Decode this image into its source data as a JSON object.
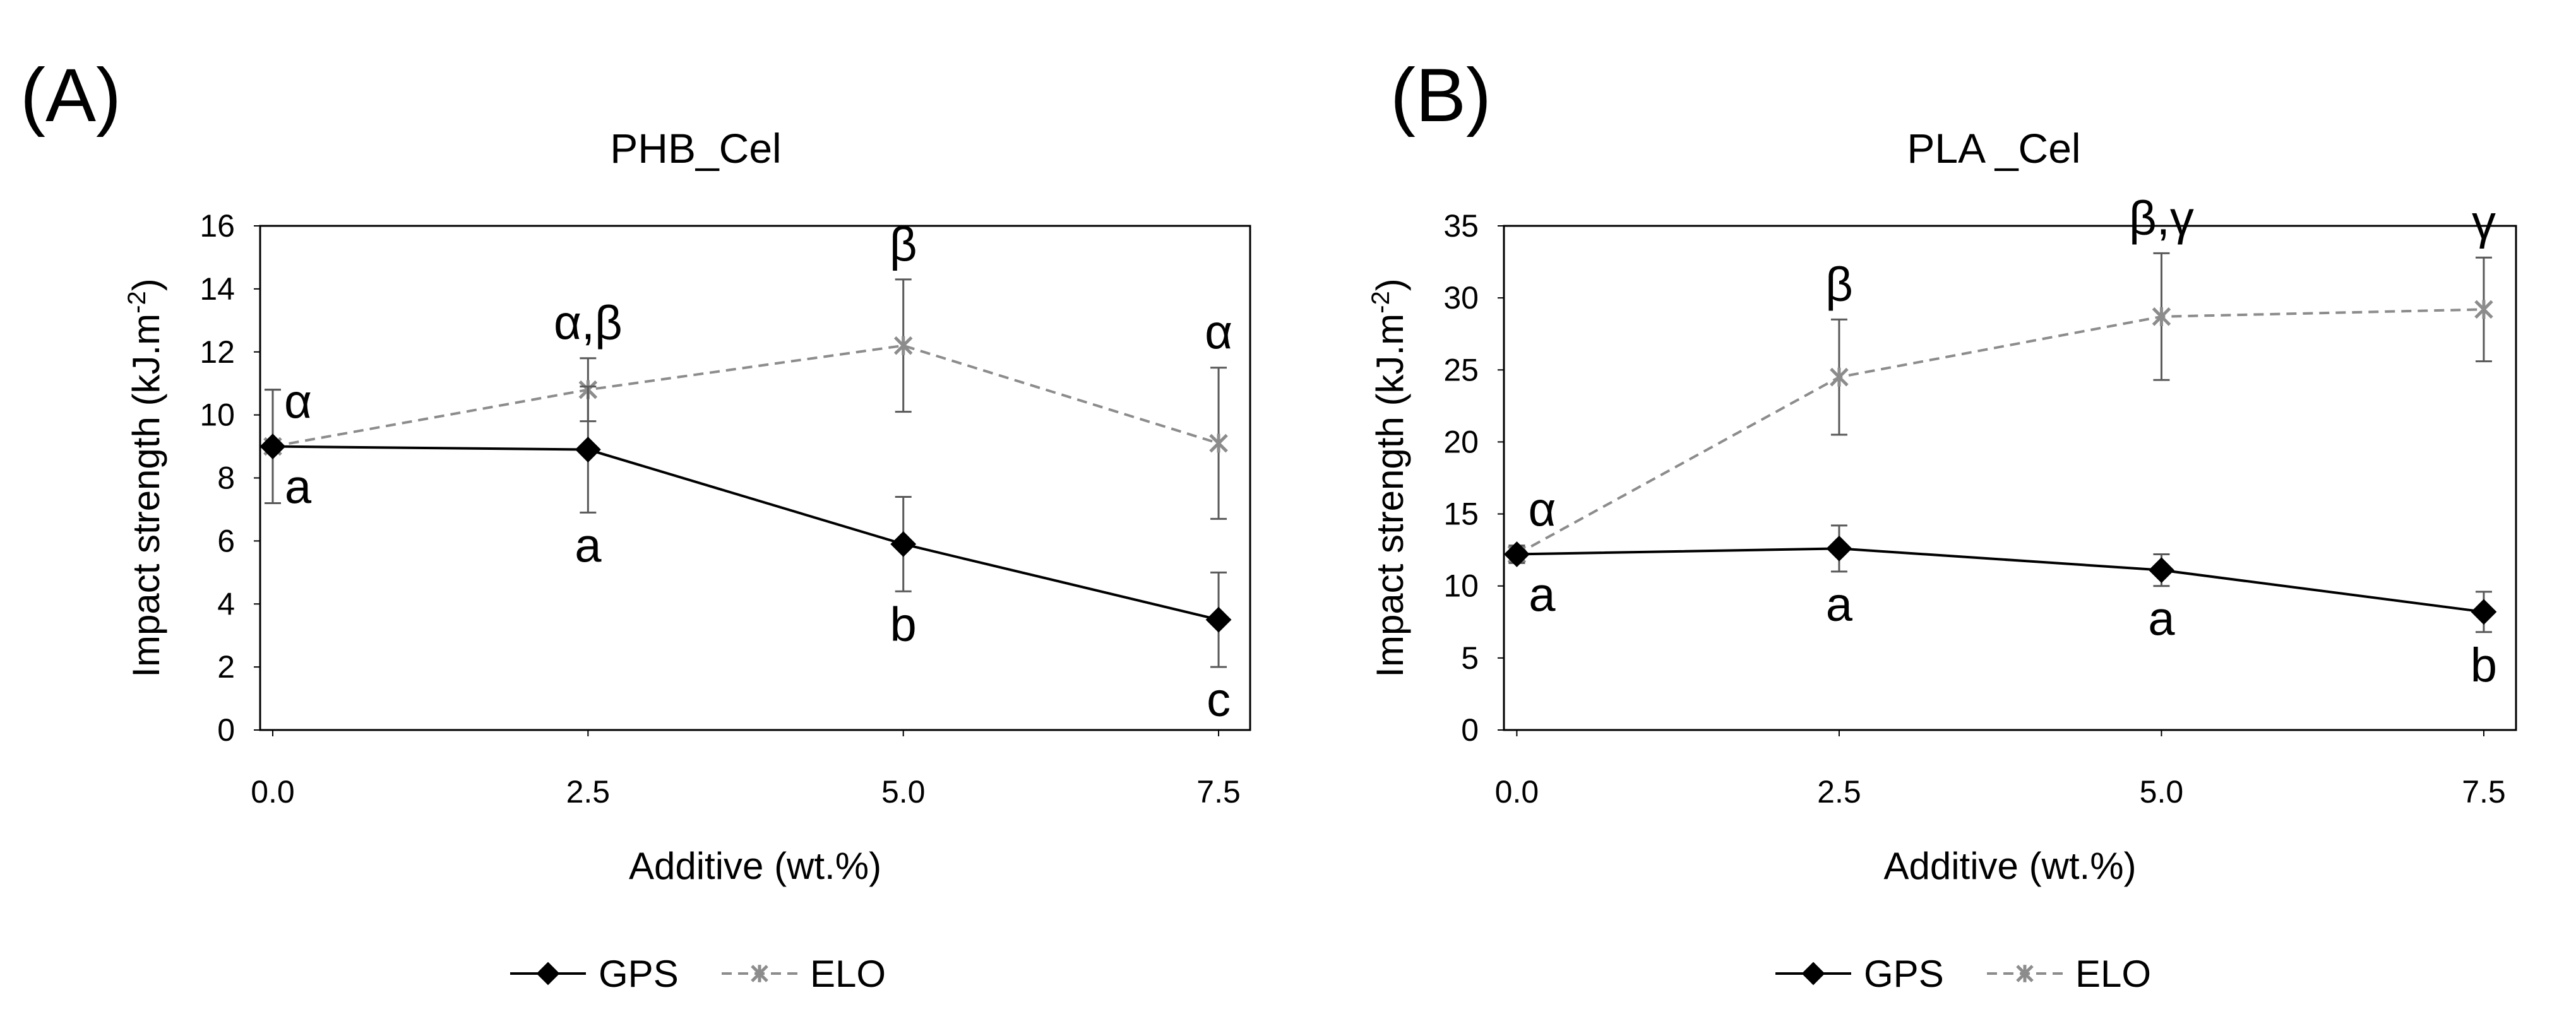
{
  "chart_data": [
    {
      "panel_label": "(A)",
      "type": "line",
      "title": "PHB_Cel",
      "xlabel": "Additive (wt.%)",
      "ylabel_main": "Impact strength (kJ.m",
      "ylabel_sup": "-2",
      "ylabel_end": ")",
      "x": [
        0,
        2.5,
        5,
        7.5
      ],
      "x_tick_labels": [
        "0.0",
        "2.5",
        "5.0",
        "7.5"
      ],
      "ylim": [
        0,
        16
      ],
      "y_ticks": [
        0,
        2,
        4,
        6,
        8,
        10,
        12,
        14,
        16
      ],
      "series": [
        {
          "name": "GPS",
          "values": [
            9.0,
            8.9,
            5.9,
            3.5
          ],
          "errors": [
            1.8,
            2.0,
            1.5,
            1.5
          ],
          "annotations": [
            "a",
            "a",
            "b",
            "c"
          ],
          "annotation_position": "below",
          "color": "#000000",
          "marker": "diamond",
          "line_style": "solid"
        },
        {
          "name": "ELO",
          "values": [
            9.0,
            10.8,
            12.2,
            9.1
          ],
          "errors": [
            1.8,
            1.0,
            2.1,
            2.4
          ],
          "annotations": [
            "α",
            "α,β",
            "β",
            "α"
          ],
          "annotation_position": "above",
          "color": "#8c8c8c",
          "marker": "star",
          "line_style": "dashed"
        }
      ]
    },
    {
      "panel_label": "(B)",
      "type": "line",
      "title": "PLA _Cel",
      "xlabel": "Additive (wt.%)",
      "ylabel_main": "Impact strength (kJ.m",
      "ylabel_sup": "-2",
      "ylabel_end": ")",
      "x": [
        0,
        2.5,
        5,
        7.5
      ],
      "x_tick_labels": [
        "0.0",
        "2.5",
        "5.0",
        "7.5"
      ],
      "ylim": [
        0,
        35
      ],
      "y_ticks": [
        0,
        5,
        10,
        15,
        20,
        25,
        30,
        35
      ],
      "series": [
        {
          "name": "GPS",
          "values": [
            12.2,
            12.6,
            11.1,
            8.2
          ],
          "errors": [
            0.6,
            1.6,
            1.1,
            1.4
          ],
          "annotations": [
            "a",
            "a",
            "a",
            "b"
          ],
          "annotation_position": "below",
          "color": "#000000",
          "marker": "diamond",
          "line_style": "solid"
        },
        {
          "name": "ELO",
          "values": [
            12.2,
            24.5,
            28.7,
            29.2
          ],
          "errors": [
            0.6,
            4.0,
            4.4,
            3.6
          ],
          "annotations": [
            "α",
            "β",
            "β,γ",
            "γ"
          ],
          "annotation_position": "above",
          "color": "#8c8c8c",
          "marker": "star",
          "line_style": "dashed"
        }
      ]
    }
  ]
}
